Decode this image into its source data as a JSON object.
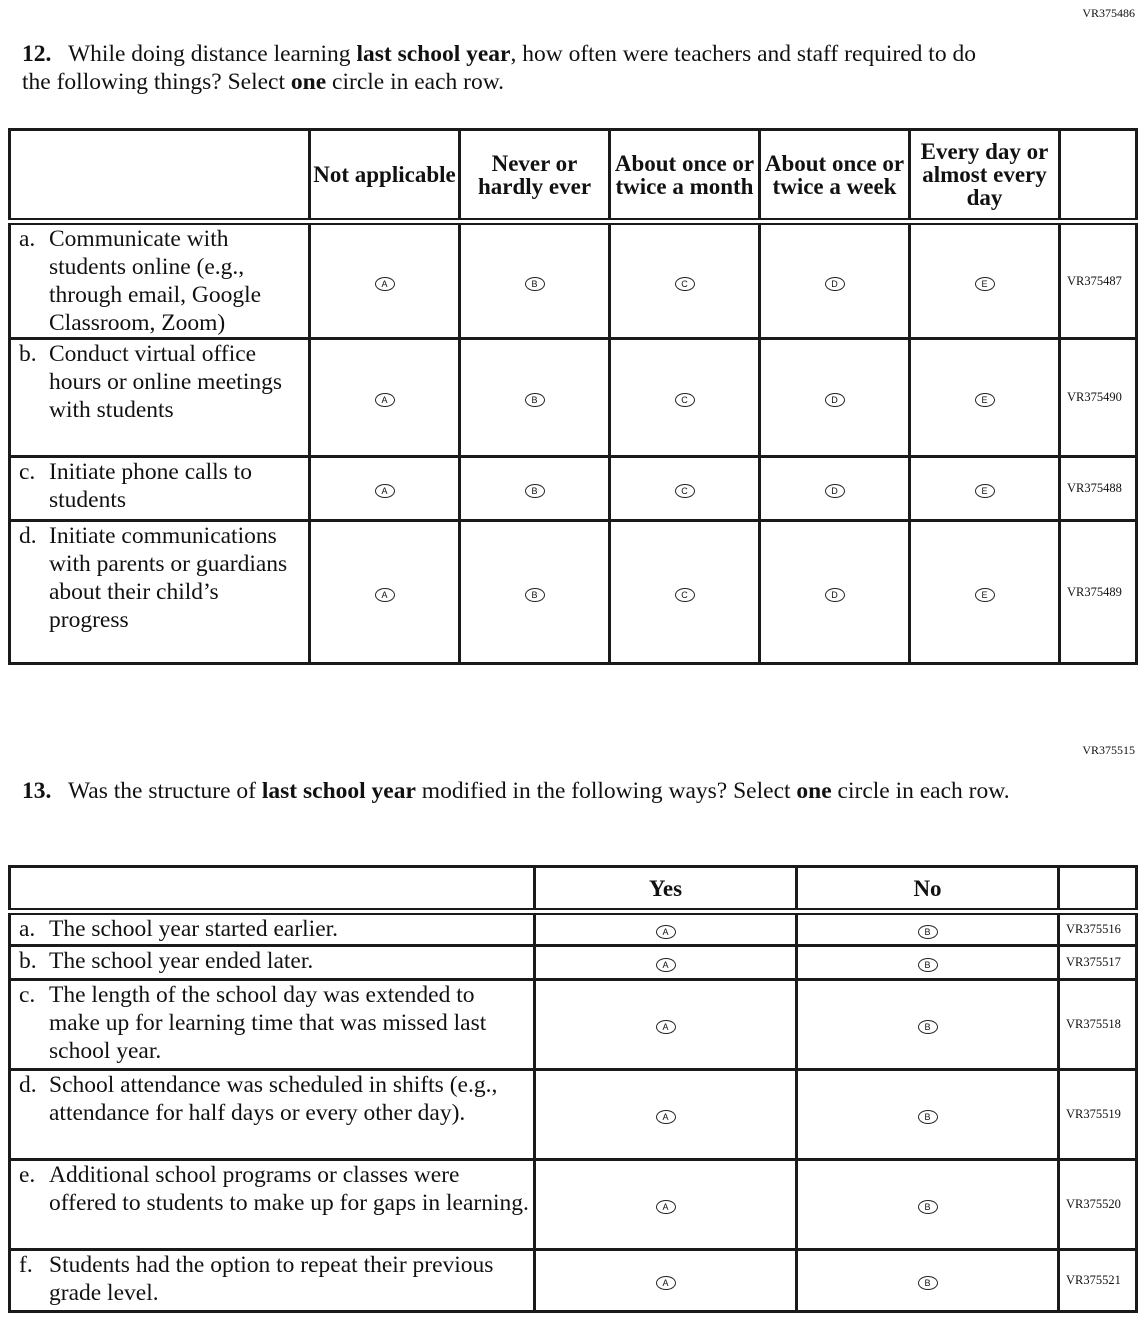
{
  "q12": {
    "code": "VR375486",
    "number": "12.",
    "text_parts": [
      "While doing distance learning ",
      "last school year",
      ", how often were teachers and staff required to do the following things? Select ",
      "one",
      " circle in each row."
    ],
    "columns": [
      "Not applicable",
      "Never or hardly ever",
      "About once or twice a month",
      "About once or twice a week",
      "Every day or almost every day"
    ],
    "options": [
      "A",
      "B",
      "C",
      "D",
      "E"
    ],
    "rows": [
      {
        "letter": "a.",
        "text": "Communicate with students online (e.g., through email, Google Classroom, Zoom)",
        "code": "VR375487"
      },
      {
        "letter": "b.",
        "text": "Conduct virtual office hours or online meetings with students",
        "code": "VR375490"
      },
      {
        "letter": "c.",
        "text": "Initiate phone calls to students",
        "code": "VR375488"
      },
      {
        "letter": "d.",
        "text": "Initiate communications with parents or guardians about their child’s progress",
        "code": "VR375489"
      }
    ]
  },
  "q13": {
    "code": "VR375515",
    "number": "13.",
    "text_parts": [
      "Was the structure of ",
      "last school year",
      " modified in the following ways? Select ",
      "one",
      " circle in each row."
    ],
    "columns": [
      "Yes",
      "No"
    ],
    "options": [
      "A",
      "B"
    ],
    "rows": [
      {
        "letter": "a.",
        "text": "The school year started earlier.",
        "code": "VR375516"
      },
      {
        "letter": "b.",
        "text": "The school year ended later.",
        "code": "VR375517"
      },
      {
        "letter": "c.",
        "text": "The length of the school day was extended to make up for learning time that was missed last school year.",
        "code": "VR375518"
      },
      {
        "letter": "d.",
        "text": "School attendance was scheduled in shifts (e.g., attendance for half days or every other day).",
        "code": "VR375519"
      },
      {
        "letter": "e.",
        "text": "Additional school programs or classes were offered to students to make up for gaps in learning.",
        "code": "VR375520"
      },
      {
        "letter": "f.",
        "text": "Students had the option to repeat their previous grade level.",
        "code": "VR375521"
      }
    ]
  }
}
